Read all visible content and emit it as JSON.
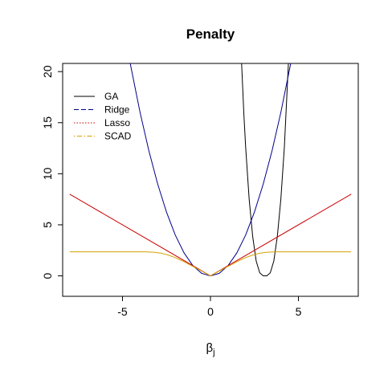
{
  "chart_data": {
    "type": "line",
    "title": "Penalty",
    "xlabel": "β",
    "xlabel_sub": "j",
    "ylabel": "",
    "xlim": [
      -8.4,
      8.4
    ],
    "ylim": [
      -2.0,
      20.8
    ],
    "xticks": [
      -5,
      0,
      5
    ],
    "yticks": [
      0,
      5,
      10,
      15,
      20
    ],
    "grid": false,
    "legend_position": "top-left",
    "series": [
      {
        "name": "GA",
        "color": "#000000",
        "dash": "solid",
        "x": [
          1.77,
          1.9,
          2.0,
          2.2,
          2.4,
          2.6,
          2.8,
          3.0,
          3.2,
          3.4,
          3.6,
          3.8,
          4.0,
          4.2,
          4.43
        ],
        "y": [
          20.8,
          15.8,
          12.6,
          7.5,
          3.85,
          1.45,
          0.3,
          0.0,
          0.0,
          0.3,
          1.45,
          3.85,
          7.5,
          12.6,
          20.8
        ]
      },
      {
        "name": "Ridge",
        "color": "#00008B",
        "dash": "dashed",
        "x": [
          -4.56,
          -4.0,
          -3.5,
          -3.0,
          -2.5,
          -2.0,
          -1.5,
          -1.0,
          -0.5,
          0,
          0.5,
          1.0,
          1.5,
          2.0,
          2.5,
          3.0,
          3.5,
          4.0,
          4.56
        ],
        "y": [
          20.8,
          16.0,
          12.25,
          9.0,
          6.25,
          4.0,
          2.25,
          1.0,
          0.25,
          0.0,
          0.25,
          1.0,
          2.25,
          4.0,
          6.25,
          9.0,
          12.25,
          16.0,
          20.8
        ]
      },
      {
        "name": "Lasso",
        "color": "#CC0000",
        "dash": "dotted",
        "x": [
          -8,
          0,
          8
        ],
        "y": [
          8,
          0,
          8
        ]
      },
      {
        "name": "SCAD",
        "color": "#D4A000",
        "dash": "dotdash",
        "x": [
          -8,
          -3.7,
          -3.2,
          -2.8,
          -2.4,
          -2.0,
          -1.6,
          -1.2,
          -0.8,
          -0.4,
          0,
          0.4,
          0.8,
          1.2,
          1.6,
          2.0,
          2.4,
          2.8,
          3.2,
          3.7,
          8
        ],
        "y": [
          2.35,
          2.35,
          2.31,
          2.22,
          2.04,
          1.79,
          1.47,
          1.11,
          0.76,
          0.38,
          0,
          0.38,
          0.76,
          1.11,
          1.47,
          1.79,
          2.04,
          2.22,
          2.31,
          2.35,
          2.35
        ]
      }
    ]
  }
}
